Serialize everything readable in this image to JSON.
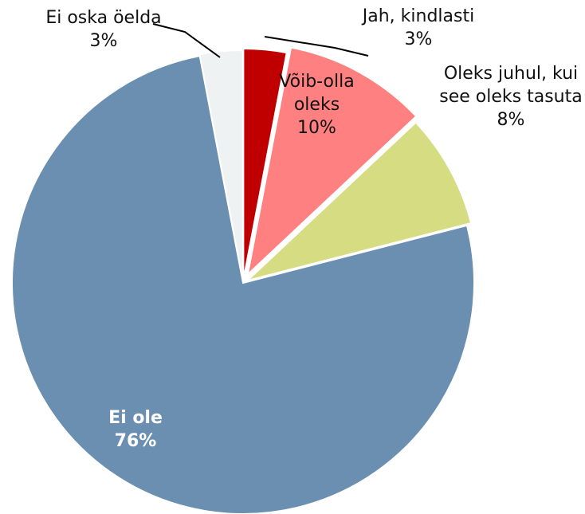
{
  "chart_data": {
    "type": "pie",
    "categories": [
      "Jah, kindlasti",
      "Võib-olla oleks",
      "Oleks juhul, kui see oleks tasuta",
      "Ei ole",
      "Ei oska öelda"
    ],
    "values": [
      3,
      10,
      8,
      76,
      3
    ],
    "value_labels": [
      "3%",
      "10%",
      "8%",
      "76%",
      "3%"
    ],
    "colors": [
      "#c00000",
      "#ff8080",
      "#d6dc82",
      "#6a8fb0",
      "#eef2f2"
    ]
  }
}
